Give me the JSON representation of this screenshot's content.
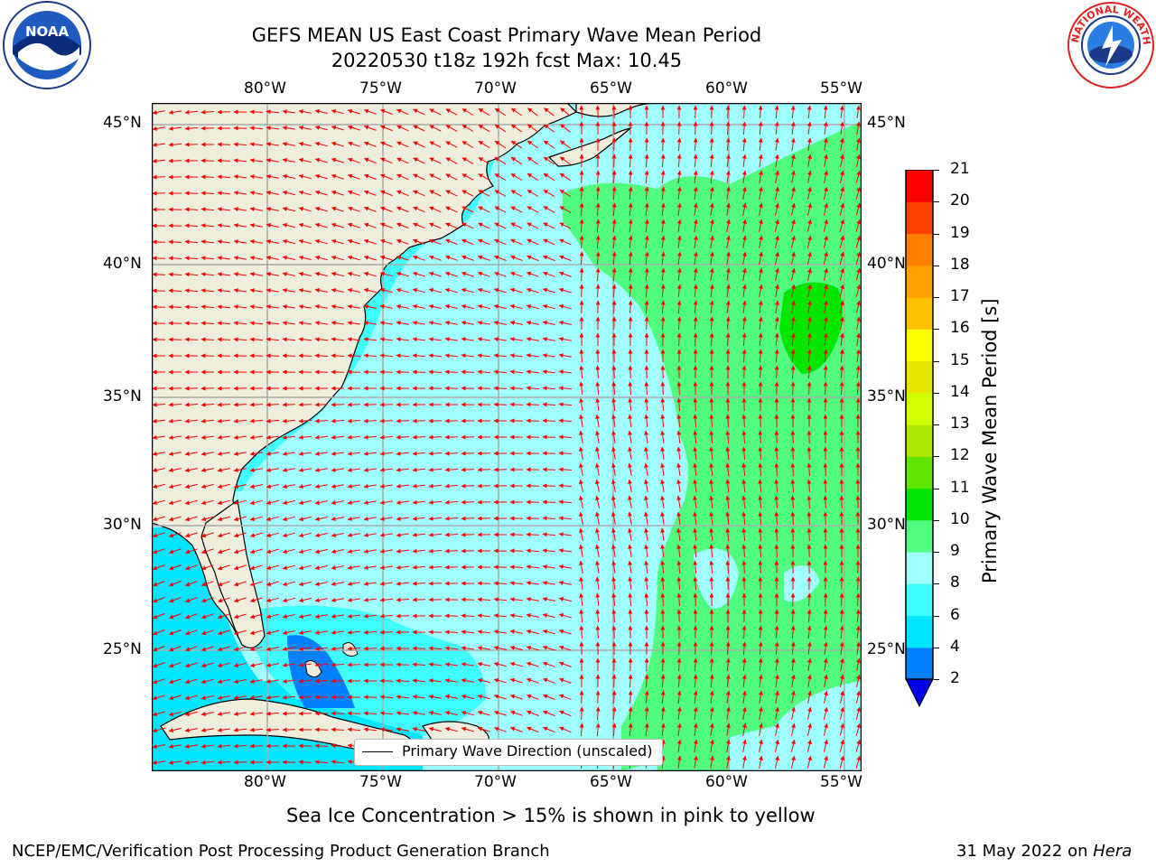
{
  "title": "GEFS MEAN US East Coast Primary Wave Mean Period",
  "subtitle": "20220530 t18z 192h fcst   Max: 10.45",
  "logos": {
    "left": "NOAA",
    "right": "NATIONAL WEATHER SERVICE"
  },
  "lon_ticks": [
    "80°W",
    "75°W",
    "70°W",
    "65°W",
    "60°W",
    "55°W"
  ],
  "lat_ticks": [
    "45°N",
    "40°N",
    "35°N",
    "30°N",
    "25°N"
  ],
  "legend_text": "Primary Wave Direction (unscaled)",
  "sea_ice_note": "Sea Ice Concentration > 15% is shown in pink to yellow",
  "footer_left": "NCEP/EMC/Verification Post Processing Product Generation Branch",
  "footer_right_prefix": "31 May 2022 on",
  "footer_right_host": "Hera",
  "colorbar": {
    "label": "Primary Wave Mean Period [s]",
    "ticks": [
      "2",
      "4",
      "6",
      "8",
      "9",
      "10",
      "11",
      "12",
      "13",
      "14",
      "15",
      "16",
      "17",
      "18",
      "19",
      "20",
      "21"
    ],
    "colors": [
      "#0000e6",
      "#0080ff",
      "#00e6ff",
      "#40ffff",
      "#a0ffff",
      "#50ff80",
      "#00e600",
      "#60e600",
      "#b0e600",
      "#d0ff00",
      "#e6e600",
      "#ffff00",
      "#ffc000",
      "#ffa000",
      "#ff8000",
      "#ff4000",
      "#ff0000"
    ]
  },
  "colors": {
    "land": "#efeedc",
    "water_low": "#40ffff",
    "water_mid": "#a0ffff",
    "water_high": "#50ff80",
    "arrows": "#ff0000",
    "grid": "#aaaaaa"
  }
}
